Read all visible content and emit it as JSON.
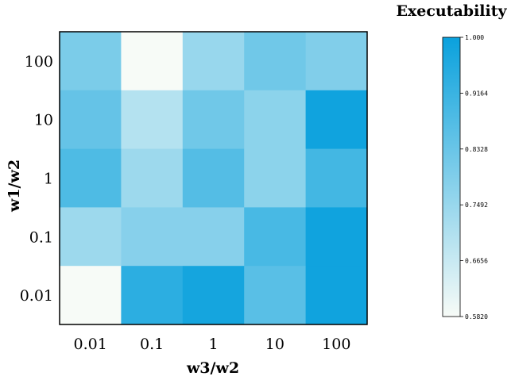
{
  "chart_data": {
    "type": "heatmap",
    "title": "",
    "xlabel": "w3/w2",
    "ylabel": "w1/w2",
    "x_categories": [
      "0.01",
      "0.1",
      "1",
      "10",
      "100"
    ],
    "y_categories": [
      "100",
      "10",
      "1",
      "0.1",
      "0.01"
    ],
    "values": [
      [
        0.8,
        0.58,
        0.75,
        0.82,
        0.79
      ],
      [
        0.84,
        0.7,
        0.82,
        0.77,
        0.99
      ],
      [
        0.88,
        0.74,
        0.87,
        0.77,
        0.9
      ],
      [
        0.74,
        0.78,
        0.78,
        0.89,
        0.99
      ],
      [
        0.58,
        0.94,
        0.98,
        0.86,
        0.99
      ]
    ],
    "colorbar": {
      "title": "Executability",
      "min": 0.582,
      "max": 1.0,
      "ticks": [
        "1.000",
        "0.9164",
        "0.8328",
        "0.7492",
        "0.6656",
        "0.5820"
      ],
      "colors": {
        "low": "#f7fbf7",
        "high": "#0aa1dd"
      }
    }
  }
}
